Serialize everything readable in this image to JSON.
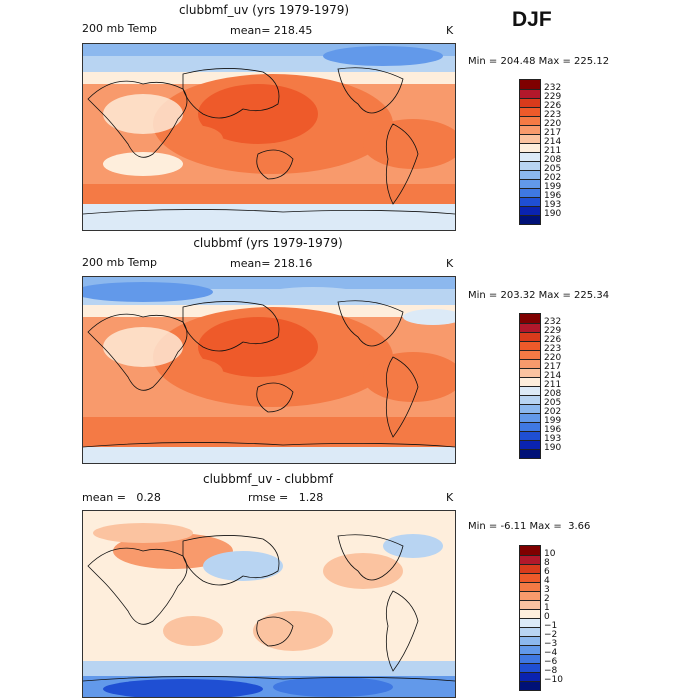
{
  "season": "DJF",
  "panels": [
    {
      "title": "clubbmf_uv (yrs 1979-1979)",
      "left_label": "200 mb Temp",
      "center_label": "mean= 218.45",
      "right_label": "K",
      "min_max": "Min = 204.48 Max = 225.12",
      "colorbar": {
        "labels": [
          "232",
          "229",
          "226",
          "223",
          "220",
          "217",
          "214",
          "211",
          "208",
          "205",
          "202",
          "199",
          "196",
          "193",
          "190"
        ],
        "colors": [
          "#7f0000",
          "#b2182b",
          "#d93b1c",
          "#ee5a2a",
          "#f47a45",
          "#f89a6c",
          "#fbc3a0",
          "#feeedc",
          "#dceaf7",
          "#b8d4f2",
          "#8cb8ee",
          "#6299ea",
          "#3f78e2",
          "#1f4fd3",
          "#0a23b0",
          "#001177"
        ]
      },
      "field": "upper"
    },
    {
      "title": "clubbmf (yrs 1979-1979)",
      "left_label": "200 mb Temp",
      "center_label": "mean= 218.16",
      "right_label": "K",
      "min_max": "Min = 203.32 Max = 225.34",
      "colorbar": {
        "labels": [
          "232",
          "229",
          "226",
          "223",
          "220",
          "217",
          "214",
          "211",
          "208",
          "205",
          "202",
          "199",
          "196",
          "193",
          "190"
        ],
        "colors": [
          "#7f0000",
          "#b2182b",
          "#d93b1c",
          "#ee5a2a",
          "#f47a45",
          "#f89a6c",
          "#fbc3a0",
          "#feeedc",
          "#dceaf7",
          "#b8d4f2",
          "#8cb8ee",
          "#6299ea",
          "#3f78e2",
          "#1f4fd3",
          "#0a23b0",
          "#001177"
        ]
      },
      "field": "upper2"
    },
    {
      "title": "clubbmf_uv - clubbmf",
      "left_label": "mean =   0.28",
      "center_label": "rmse =   1.28",
      "right_label": "K",
      "min_max": "Min = -6.11 Max =  3.66",
      "colorbar": {
        "labels": [
          "10",
          "8",
          "6",
          "4",
          "3",
          "2",
          "1",
          "0",
          "−1",
          "−2",
          "−3",
          "−4",
          "−6",
          "−8",
          "−10"
        ],
        "colors": [
          "#7f0000",
          "#b2182b",
          "#d93b1c",
          "#ee5a2a",
          "#f47a45",
          "#f89a6c",
          "#fbc3a0",
          "#feeedc",
          "#dceaf7",
          "#b8d4f2",
          "#8cb8ee",
          "#6299ea",
          "#3f78e2",
          "#1f4fd3",
          "#0a23b0",
          "#001177"
        ]
      },
      "field": "diff"
    }
  ]
}
